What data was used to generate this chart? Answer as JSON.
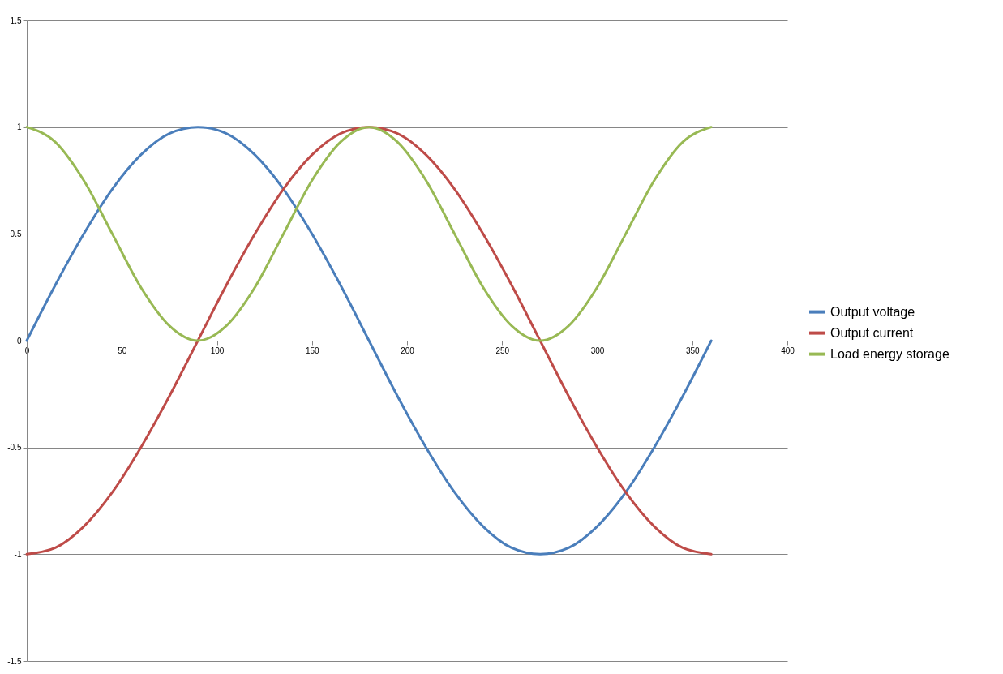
{
  "chart_data": {
    "type": "line",
    "x": [
      0,
      15,
      30,
      45,
      60,
      75,
      90,
      105,
      120,
      135,
      150,
      165,
      180,
      195,
      210,
      225,
      240,
      255,
      270,
      285,
      300,
      315,
      330,
      345,
      360
    ],
    "series": [
      {
        "name": "Output voltage",
        "color": "#4a7ebb",
        "values": [
          0,
          0.26,
          0.5,
          0.71,
          0.87,
          0.97,
          1,
          0.97,
          0.87,
          0.71,
          0.5,
          0.26,
          0,
          -0.26,
          -0.5,
          -0.71,
          -0.87,
          -0.97,
          -1,
          -0.97,
          -0.87,
          -0.71,
          -0.5,
          -0.26,
          0
        ]
      },
      {
        "name": "Output current",
        "color": "#be4b48",
        "values": [
          -1,
          -0.97,
          -0.87,
          -0.71,
          -0.5,
          -0.26,
          0,
          0.26,
          0.5,
          0.71,
          0.87,
          0.97,
          1,
          0.97,
          0.87,
          0.71,
          0.5,
          0.26,
          0,
          -0.26,
          -0.5,
          -0.71,
          -0.87,
          -0.97,
          -1
        ]
      },
      {
        "name": "Load energy storage",
        "color": "#98b954",
        "values": [
          1,
          0.93,
          0.75,
          0.5,
          0.25,
          0.07,
          0,
          0.07,
          0.25,
          0.5,
          0.75,
          0.93,
          1,
          0.93,
          0.75,
          0.5,
          0.25,
          0.07,
          0,
          0.07,
          0.25,
          0.5,
          0.75,
          0.93,
          1
        ]
      }
    ],
    "xlim": [
      0,
      400
    ],
    "xticks": [
      0,
      50,
      100,
      150,
      200,
      250,
      300,
      350,
      400
    ],
    "ylim": [
      -1.5,
      1.5
    ],
    "yticks": [
      -1.5,
      -1,
      -0.5,
      0,
      0.5,
      1,
      1.5
    ],
    "grid": "y",
    "legend": "right",
    "marker": "none",
    "line_style": "solid"
  }
}
